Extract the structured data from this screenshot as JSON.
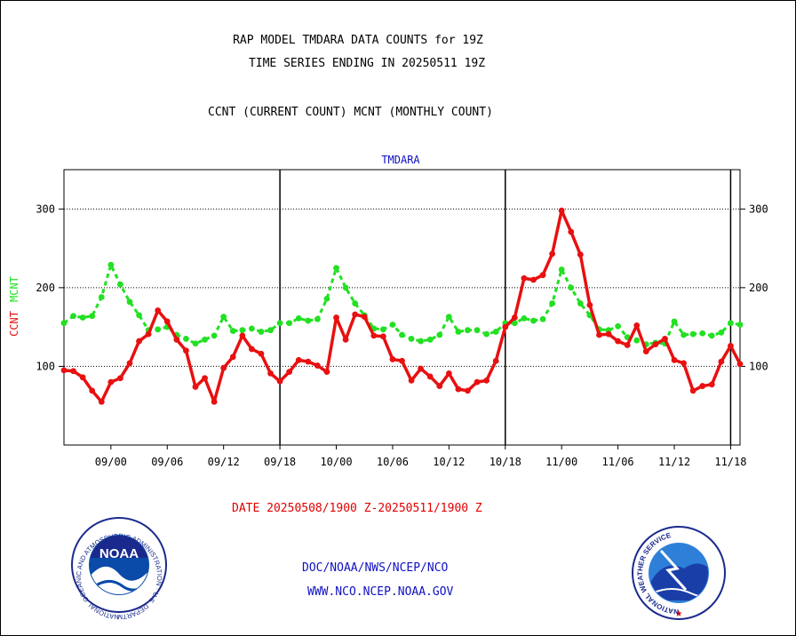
{
  "header": {
    "title_line1": "RAP MODEL TMDARA DATA COUNTS for 19Z",
    "title_line2": "TIME SERIES ENDING IN 20250511 19Z",
    "legend_line": "CCNT (CURRENT COUNT) MCNT (MONTHLY COUNT)"
  },
  "footer": {
    "date_range": "DATE 20250508/1900 Z-20250511/1900 Z",
    "doc_link": "DOC/NOAA/NWS/NCEP/NCO",
    "www_link": "WWW.NCO.NCEP.NOAA.GOV"
  },
  "logos": {
    "noaa_wordmark": "NOAA",
    "noaa_ring_text": "NATIONAL OCEANIC AND ATMOSPHERIC ADMINISTRATION · U.S. DEPARTMENT OF COMMERCE",
    "nws_ring_text": "NATIONAL WEATHER SERVICE"
  },
  "colors": {
    "ccnt": "#e81010",
    "mcnt": "#22e022",
    "grid": "#000000",
    "panel_title": "#1010c0"
  },
  "chart_data": {
    "type": "line",
    "title": "TMDARA",
    "ylabel_parts": [
      "CCNT",
      "MCNT"
    ],
    "x_tick_labels": [
      "09/00",
      "09/06",
      "09/12",
      "09/18",
      "10/00",
      "10/06",
      "10/12",
      "10/18",
      "11/00",
      "11/06",
      "11/12",
      "11/18"
    ],
    "x_tick_hours": [
      5,
      11,
      17,
      23,
      29,
      35,
      41,
      47,
      53,
      59,
      65,
      71
    ],
    "day_boundaries_hours": [
      23,
      47,
      71
    ],
    "x_range_hours": [
      0,
      72
    ],
    "ylim": [
      0,
      350
    ],
    "y_ticks": [
      100,
      200,
      300
    ],
    "grid": "horizontal dotted at 100, 200, 300",
    "series": [
      {
        "name": "CCNT",
        "values": [
          95,
          94,
          86,
          69,
          55,
          80,
          85,
          104,
          132,
          141,
          171,
          157,
          134,
          120,
          74,
          85,
          55,
          98,
          112,
          139,
          122,
          116,
          91,
          81,
          93,
          108,
          106,
          101,
          93,
          162,
          134,
          166,
          163,
          139,
          138,
          109,
          107,
          82,
          97,
          87,
          75,
          91,
          71,
          69,
          80,
          82,
          107,
          150,
          162,
          212,
          210,
          216,
          243,
          298,
          271,
          242,
          178,
          140,
          141,
          132,
          127,
          152,
          119,
          128,
          135,
          108,
          104,
          69,
          75,
          77,
          106,
          126,
          103
        ]
      },
      {
        "name": "MCNT",
        "values": [
          155,
          164,
          162,
          164,
          188,
          229,
          204,
          182,
          165,
          146,
          147,
          150,
          140,
          135,
          129,
          134,
          139,
          163,
          145,
          146,
          148,
          144,
          146,
          155,
          155,
          161,
          158,
          160,
          186,
          225,
          200,
          180,
          165,
          148,
          147,
          153,
          140,
          135,
          132,
          134,
          140,
          163,
          144,
          146,
          146,
          141,
          144,
          155,
          155,
          161,
          158,
          160,
          180,
          223,
          200,
          180,
          165,
          147,
          146,
          151,
          137,
          133,
          128,
          130,
          129,
          157,
          140,
          141,
          142,
          139,
          143,
          155,
          153
        ]
      }
    ]
  }
}
